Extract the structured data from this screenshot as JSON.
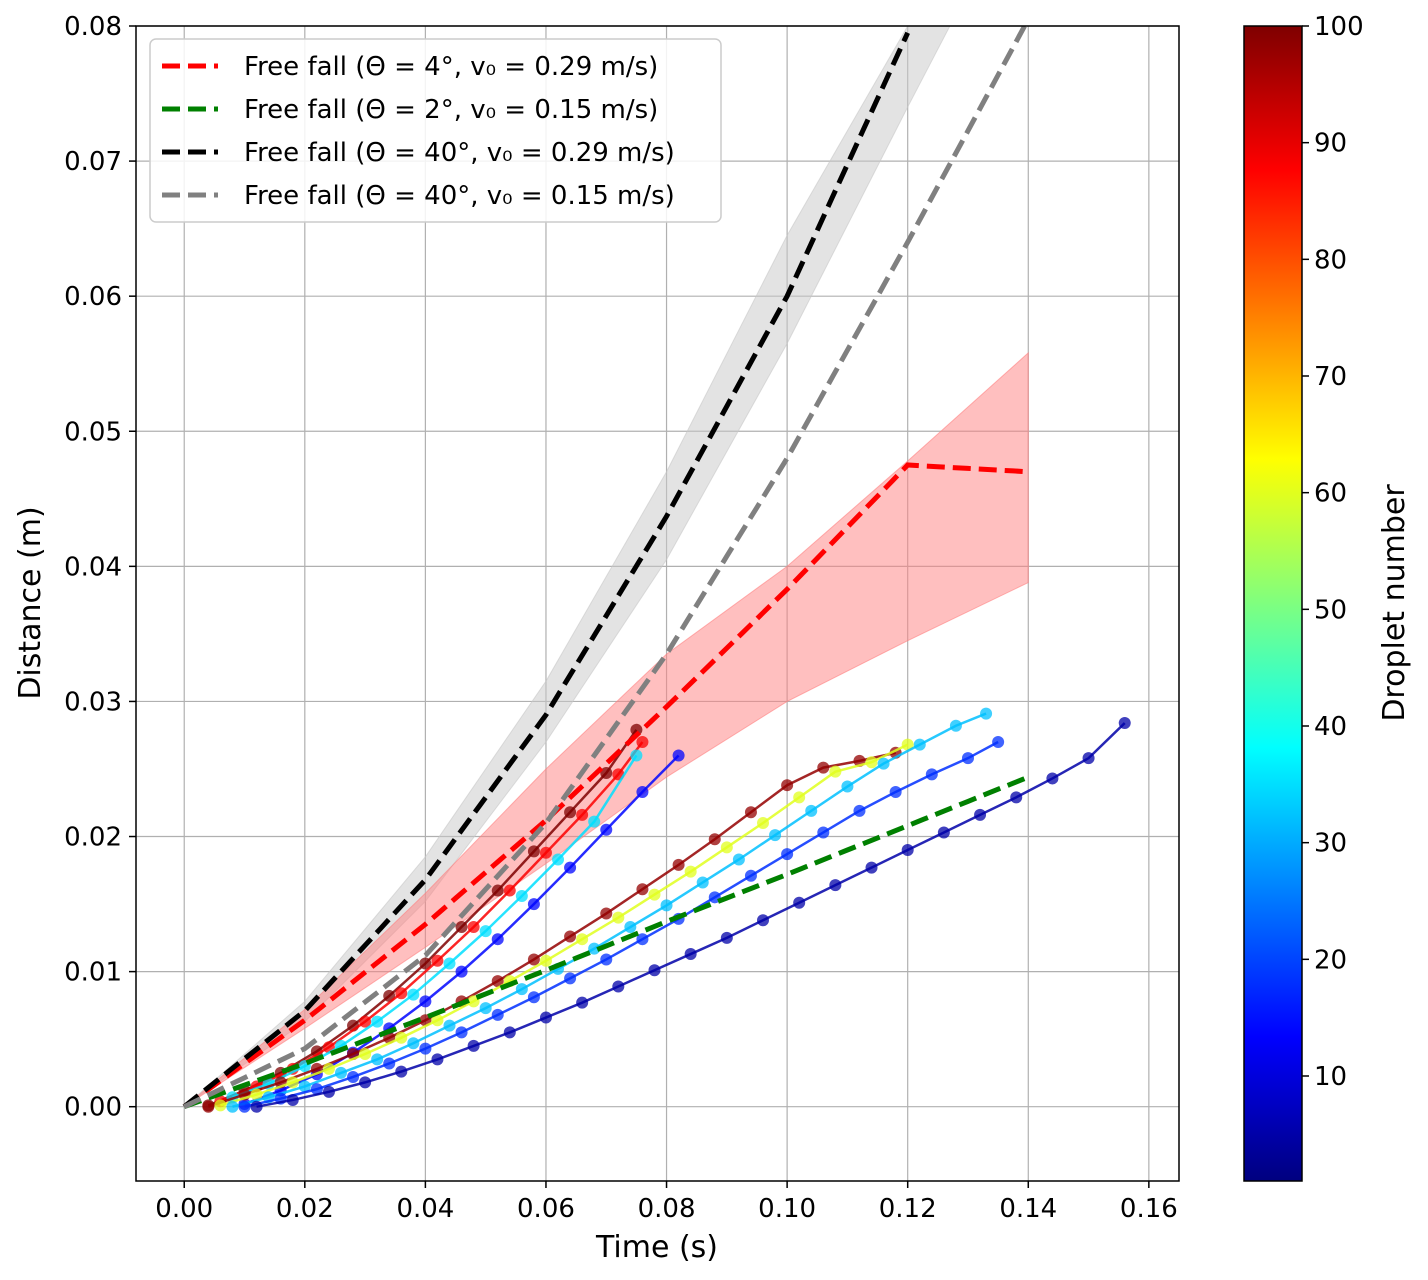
{
  "chart_data": {
    "type": "line",
    "xlabel": "Time (s)",
    "ylabel": "Distance (m)",
    "xlim": [
      -0.008,
      0.165
    ],
    "ylim": [
      -0.0055,
      0.08
    ],
    "xticks": [
      0.0,
      0.02,
      0.04,
      0.06,
      0.08,
      0.1,
      0.12,
      0.14,
      0.16
    ],
    "xtick_labels": [
      "0.00",
      "0.02",
      "0.04",
      "0.06",
      "0.08",
      "0.10",
      "0.12",
      "0.14",
      "0.16"
    ],
    "yticks": [
      0.0,
      0.01,
      0.02,
      0.03,
      0.04,
      0.05,
      0.06,
      0.07,
      0.08
    ],
    "ytick_labels": [
      "0.00",
      "0.01",
      "0.02",
      "0.03",
      "0.04",
      "0.05",
      "0.06",
      "0.07",
      "0.08"
    ],
    "grid": true,
    "legend_position": "top-left",
    "legend": [
      {
        "label": "Free fall (Θ = 4°, v₀ = 0.29 m/s)",
        "color": "#ff0000"
      },
      {
        "label": "Free fall (Θ = 2°, v₀ = 0.15 m/s)",
        "color": "#008000"
      },
      {
        "label": "Free fall (Θ = 40°, v₀ = 0.29 m/s)",
        "color": "#000000"
      },
      {
        "label": "Free fall (Θ = 40°, v₀ = 0.15 m/s)",
        "color": "#808080"
      }
    ],
    "model_lines": [
      {
        "name": "Free fall (Θ = 4°, v₀ = 0.29 m/s)",
        "color": "#ff0000",
        "x": [
          0.0,
          0.02,
          0.04,
          0.06,
          0.08,
          0.1,
          0.12,
          0.14
        ],
        "y": [
          0.0,
          0.0064,
          0.0135,
          0.0212,
          0.0296,
          0.0383,
          0.0475,
          0.047
        ]
      },
      {
        "name": "Free fall (Θ = 2°, v₀ = 0.15 m/s)",
        "color": "#008000",
        "x": [
          0.0,
          0.02,
          0.04,
          0.06,
          0.08,
          0.1,
          0.12,
          0.14
        ],
        "y": [
          0.0,
          0.0032,
          0.0066,
          0.0101,
          0.0137,
          0.0172,
          0.0208,
          0.0244
        ]
      },
      {
        "name": "Free fall (Θ = 40°, v₀ = 0.29 m/s)",
        "color": "#000000",
        "x": [
          0.0,
          0.02,
          0.04,
          0.06,
          0.08,
          0.1,
          0.12
        ],
        "y": [
          0.0,
          0.0071,
          0.0168,
          0.029,
          0.0437,
          0.06,
          0.0795
        ]
      },
      {
        "name": "Free fall (Θ = 40°, v₀ = 0.15 m/s)",
        "color": "#808080",
        "x": [
          0.0,
          0.02,
          0.04,
          0.06,
          0.08,
          0.1,
          0.12,
          0.14
        ],
        "y": [
          0.0,
          0.0043,
          0.0112,
          0.021,
          0.0335,
          0.048,
          0.064,
          0.0805
        ]
      }
    ],
    "bands": [
      {
        "name": "Θ = 40° band",
        "color": "#c8c8c8",
        "x": [
          0.0,
          0.02,
          0.04,
          0.06,
          0.08,
          0.1,
          0.12,
          0.127
        ],
        "lower": [
          0.0,
          0.0063,
          0.0152,
          0.027,
          0.0405,
          0.0565,
          0.074,
          0.08
        ],
        "upper": [
          0.0,
          0.0078,
          0.0185,
          0.0315,
          0.047,
          0.0645,
          0.08,
          0.08
        ]
      },
      {
        "name": "Θ = 4° band",
        "color": "#ff8080",
        "x": [
          0.0,
          0.02,
          0.04,
          0.06,
          0.08,
          0.1,
          0.12,
          0.14
        ],
        "lower": [
          0.0,
          0.0058,
          0.0118,
          0.018,
          0.0244,
          0.03,
          0.0345,
          0.0388
        ],
        "upper": [
          0.0,
          0.0072,
          0.0158,
          0.025,
          0.0335,
          0.04,
          0.0478,
          0.0558
        ]
      }
    ],
    "droplet_series": [
      {
        "droplet": 100,
        "x": [
          0.004,
          0.01,
          0.016,
          0.022,
          0.028,
          0.034,
          0.04,
          0.046,
          0.052,
          0.058,
          0.064,
          0.07,
          0.075
        ],
        "y": [
          0.0001,
          0.0012,
          0.0025,
          0.0041,
          0.006,
          0.0082,
          0.0106,
          0.0133,
          0.016,
          0.0189,
          0.0218,
          0.0247,
          0.0279
        ]
      },
      {
        "droplet": 88,
        "x": [
          0.006,
          0.012,
          0.018,
          0.024,
          0.03,
          0.036,
          0.042,
          0.048,
          0.054,
          0.06,
          0.066,
          0.072,
          0.076
        ],
        "y": [
          0.0004,
          0.0015,
          0.0028,
          0.0044,
          0.0063,
          0.0084,
          0.0108,
          0.0133,
          0.016,
          0.0188,
          0.0216,
          0.0246,
          0.027
        ]
      },
      {
        "droplet": 35,
        "x": [
          0.008,
          0.014,
          0.02,
          0.026,
          0.032,
          0.038,
          0.044,
          0.05,
          0.056,
          0.062,
          0.068,
          0.075
        ],
        "y": [
          0.0007,
          0.0017,
          0.003,
          0.0045,
          0.0063,
          0.0083,
          0.0106,
          0.013,
          0.0156,
          0.0183,
          0.0211,
          0.026
        ]
      },
      {
        "droplet": 14,
        "x": [
          0.01,
          0.016,
          0.022,
          0.028,
          0.034,
          0.04,
          0.046,
          0.052,
          0.058,
          0.064,
          0.07,
          0.076,
          0.082
        ],
        "y": [
          0.0002,
          0.0012,
          0.0024,
          0.004,
          0.0058,
          0.0078,
          0.01,
          0.0124,
          0.015,
          0.0177,
          0.0205,
          0.0233,
          0.026
        ]
      },
      {
        "droplet": 98,
        "x": [
          0.004,
          0.01,
          0.016,
          0.022,
          0.028,
          0.034,
          0.04,
          0.046,
          0.052,
          0.058,
          0.064,
          0.07,
          0.076,
          0.082,
          0.088,
          0.094,
          0.1,
          0.106,
          0.112,
          0.118
        ],
        "y": [
          0.0,
          0.0009,
          0.0018,
          0.0028,
          0.0039,
          0.0051,
          0.0064,
          0.0078,
          0.0093,
          0.0109,
          0.0126,
          0.0143,
          0.0161,
          0.0179,
          0.0198,
          0.0218,
          0.0238,
          0.0251,
          0.0256,
          0.0262
        ]
      },
      {
        "droplet": 60,
        "x": [
          0.006,
          0.012,
          0.018,
          0.024,
          0.03,
          0.036,
          0.042,
          0.048,
          0.054,
          0.06,
          0.066,
          0.072,
          0.078,
          0.084,
          0.09,
          0.096,
          0.102,
          0.108,
          0.114,
          0.12
        ],
        "y": [
          0.0001,
          0.0009,
          0.0018,
          0.0028,
          0.0039,
          0.0051,
          0.0064,
          0.0078,
          0.0093,
          0.0108,
          0.0124,
          0.014,
          0.0157,
          0.0174,
          0.0192,
          0.021,
          0.0229,
          0.0248,
          0.0255,
          0.0268
        ]
      },
      {
        "droplet": 32,
        "x": [
          0.008,
          0.014,
          0.02,
          0.026,
          0.032,
          0.038,
          0.044,
          0.05,
          0.056,
          0.062,
          0.068,
          0.074,
          0.08,
          0.086,
          0.092,
          0.098,
          0.104,
          0.11,
          0.116,
          0.122,
          0.128,
          0.133
        ],
        "y": [
          0.0,
          0.0007,
          0.0015,
          0.0025,
          0.0035,
          0.0047,
          0.006,
          0.0073,
          0.0087,
          0.0102,
          0.0117,
          0.0133,
          0.0149,
          0.0166,
          0.0183,
          0.0201,
          0.0219,
          0.0237,
          0.0254,
          0.0268,
          0.0282,
          0.0291
        ]
      },
      {
        "droplet": 18,
        "x": [
          0.01,
          0.016,
          0.022,
          0.028,
          0.034,
          0.04,
          0.046,
          0.052,
          0.058,
          0.064,
          0.07,
          0.076,
          0.082,
          0.088,
          0.094,
          0.1,
          0.106,
          0.112,
          0.118,
          0.124,
          0.13,
          0.135
        ],
        "y": [
          0.0,
          0.0006,
          0.0013,
          0.0022,
          0.0032,
          0.0043,
          0.0055,
          0.0068,
          0.0081,
          0.0095,
          0.0109,
          0.0124,
          0.0139,
          0.0155,
          0.0171,
          0.0187,
          0.0203,
          0.0219,
          0.0233,
          0.0246,
          0.0258,
          0.027
        ]
      },
      {
        "droplet": 5,
        "x": [
          0.012,
          0.018,
          0.024,
          0.03,
          0.036,
          0.042,
          0.048,
          0.054,
          0.06,
          0.066,
          0.072,
          0.078,
          0.084,
          0.09,
          0.096,
          0.102,
          0.108,
          0.114,
          0.12,
          0.126,
          0.132,
          0.138,
          0.144,
          0.15,
          0.156
        ],
        "y": [
          0.0,
          0.0005,
          0.0011,
          0.0018,
          0.0026,
          0.0035,
          0.0045,
          0.0055,
          0.0066,
          0.0077,
          0.0089,
          0.0101,
          0.0113,
          0.0125,
          0.0138,
          0.0151,
          0.0164,
          0.0177,
          0.019,
          0.0203,
          0.0216,
          0.0229,
          0.0243,
          0.0258,
          0.0284
        ]
      }
    ]
  },
  "colorbar": {
    "label": "Droplet number",
    "min": 1,
    "max": 100,
    "ticks": [
      10,
      20,
      30,
      40,
      50,
      60,
      70,
      80,
      90,
      100
    ],
    "tick_labels": [
      "10",
      "20",
      "30",
      "40",
      "50",
      "60",
      "70",
      "80",
      "90",
      "100"
    ],
    "colormap": "jet",
    "colormap_stops": [
      "#00007f",
      "#0000ff",
      "#007fff",
      "#00ffff",
      "#7fff7f",
      "#ffff00",
      "#ff7f00",
      "#ff0000",
      "#7f0000"
    ]
  }
}
